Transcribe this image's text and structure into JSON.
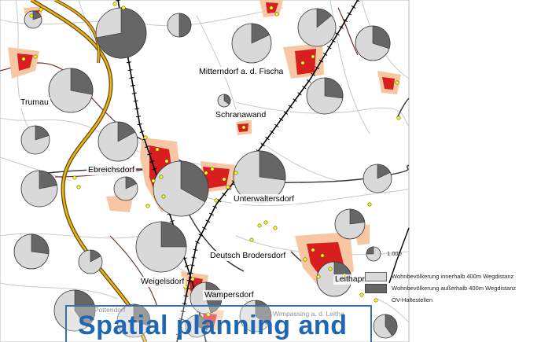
{
  "places": {
    "trumau": "Trumau",
    "mitterndorf": "Mitterndorf a. d. Fischa",
    "schranawand": "Schranawand",
    "ebreichsdorf": "Ebreichsdorf",
    "unterwaltersdorf": "Unterwaltersdorf",
    "deutsch_brodersdorf": "Deutsch Brodersdorf",
    "leithaprodersdorf": "Leithapr",
    "weigelsdorf": "Weigelsdorf",
    "wampersdorf": "Wampersdorf",
    "pottendorf": "Pottendorf",
    "wimpassing": "Wimpassing a. d. Leitha"
  },
  "legend": {
    "scale_value": "1.000",
    "inside_label": "Wohnbevölkerung innerhalb 400m Wegdistanz",
    "outside_label": "Wohnbevölkerung außerhalb 400m Wegdistanz",
    "stops_label": "ÖV-Haltestellen"
  },
  "banner": {
    "title": "Spatial planning and"
  },
  "colors": {
    "inside": "#d9d9d9",
    "outside": "#666666",
    "settlement_core": "#d81e1e",
    "settlement_fringe": "#f6c7a2",
    "stop": "#ffff00",
    "banner_text": "#1f67b0",
    "banner_border": "#3a6fa8"
  }
}
